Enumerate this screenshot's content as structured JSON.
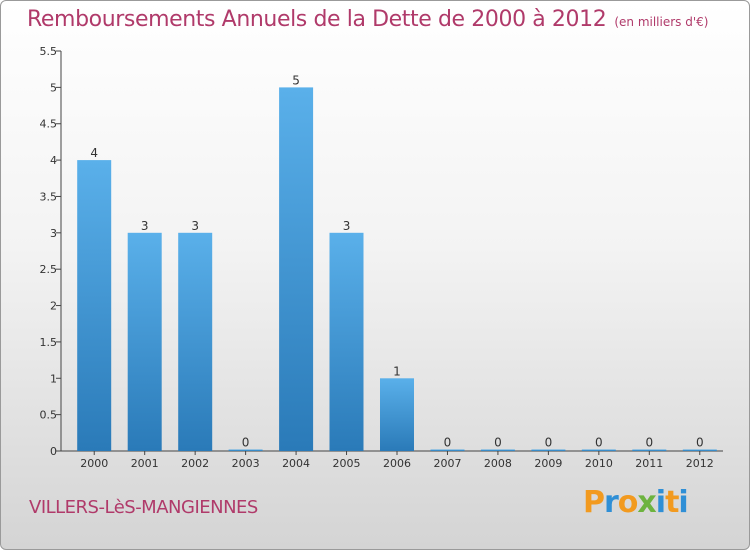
{
  "title": "Remboursements Annuels de la Dette de 2000 à 2012",
  "subtitle": "(en milliers d'€)",
  "commune": "VILLERS-LèS-MANGIENNES",
  "logo": {
    "letters": [
      "P",
      "r",
      "o",
      "x",
      "i",
      "t",
      "i"
    ],
    "colors": [
      "#f29a1f",
      "#2f8fd6",
      "#f29a1f",
      "#6db33f",
      "#2f8fd6",
      "#f29a1f",
      "#2f8fd6"
    ]
  },
  "chart_data": {
    "type": "bar",
    "title": "Remboursements Annuels de la Dette de 2000 à 2012",
    "subtitle": "(en milliers d'€)",
    "categories": [
      "2000",
      "2001",
      "2002",
      "2003",
      "2004",
      "2005",
      "2006",
      "2007",
      "2008",
      "2009",
      "2010",
      "2011",
      "2012"
    ],
    "values": [
      4,
      3,
      3,
      0,
      5,
      3,
      1,
      0,
      0,
      0,
      0,
      0,
      0
    ],
    "data_labels": [
      "4",
      "3",
      "3",
      "0",
      "5",
      "3",
      "1",
      "0",
      "0",
      "0",
      "0",
      "0",
      "0"
    ],
    "ylim": [
      0,
      5.5
    ],
    "yticks": [
      "0",
      "0.5",
      "1",
      "1.5",
      "2",
      "2.5",
      "3",
      "3.5",
      "4",
      "4.5",
      "5",
      "5.5"
    ],
    "xlabel": "",
    "ylabel": "",
    "grid": false,
    "bar_color_top": "#5ab0ea",
    "bar_color_bottom": "#2a7ab8"
  }
}
